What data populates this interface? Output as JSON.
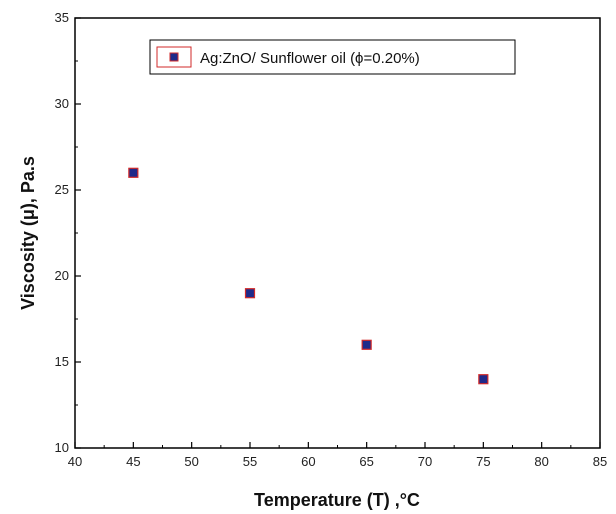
{
  "chart_data": {
    "type": "scatter",
    "title": "",
    "xlabel": "Temperature (T) ,°C",
    "ylabel": "Viscosity (μ), Pa.s",
    "xlim": [
      40,
      85
    ],
    "ylim": [
      10,
      35
    ],
    "xticks": [
      40,
      45,
      50,
      55,
      60,
      65,
      70,
      75,
      80,
      85
    ],
    "yticks": [
      10,
      15,
      20,
      25,
      30,
      35
    ],
    "grid": false,
    "legend_position": "top-center",
    "series": [
      {
        "name": "Ag:ZnO/ Sunflower oil (ϕ=0.20%)",
        "marker": "square",
        "fill_color": "#1f2a8a",
        "edge_color": "#d12a2a",
        "x": [
          45,
          55,
          65,
          75
        ],
        "y": [
          26,
          19,
          16,
          14
        ]
      }
    ]
  }
}
